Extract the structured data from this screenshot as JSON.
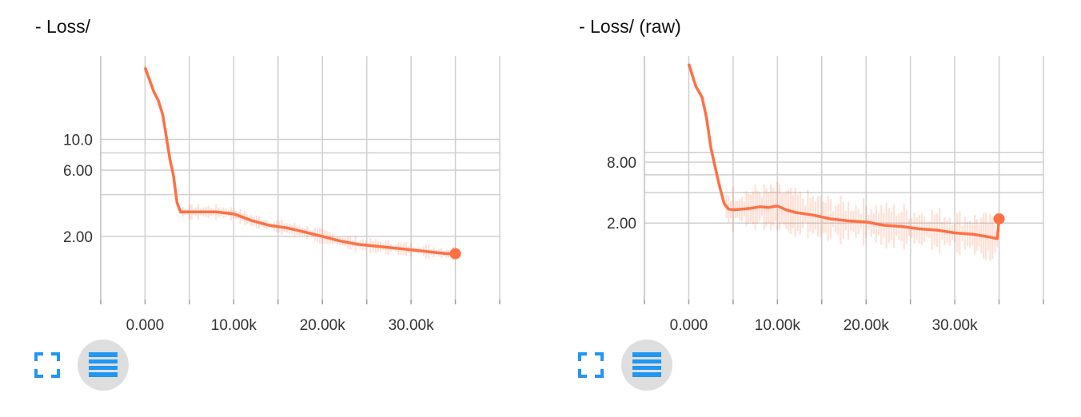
{
  "panels": [
    {
      "id": "left",
      "title": "- Loss/",
      "chart_data": {
        "type": "line",
        "title": "- Loss/",
        "xlabel": "",
        "ylabel": "",
        "x_tick_labels": [
          "0.000",
          "10.00k",
          "20.00k",
          "30.00k"
        ],
        "y_tick_labels": [
          "10.0",
          "6.00",
          "2.00"
        ],
        "xlim": [
          -5000,
          40000
        ],
        "ylim": [
          0.7,
          40
        ],
        "y_scale": "log",
        "grid": true,
        "series": [
          {
            "color": "#ff7043",
            "end_marker": true,
            "x": [
              0,
              1000,
              1500,
              2000,
              2500,
              2800,
              3200,
              3600,
              4000,
              4500,
              5000,
              6000,
              8000,
              10000,
              11000,
              12000,
              14000,
              16000,
              18000,
              20000,
              22000,
              24000,
              26000,
              28000,
              30000,
              32000,
              34000,
              35000
            ],
            "y": [
              33,
              22,
              19,
              15,
              9.5,
              7.2,
              5.5,
              3.5,
              3.0,
              3.0,
              3.0,
              3.0,
              3.0,
              2.9,
              2.75,
              2.6,
              2.4,
              2.3,
              2.15,
              2.0,
              1.85,
              1.75,
              1.7,
              1.65,
              1.6,
              1.55,
              1.5,
              1.5
            ]
          }
        ]
      }
    },
    {
      "id": "right",
      "title": "- Loss/ (raw)",
      "chart_data": {
        "type": "line",
        "title": "- Loss/ (raw)",
        "xlabel": "",
        "ylabel": "",
        "x_tick_labels": [
          "0.000",
          "10.00k",
          "20.00k",
          "30.00k"
        ],
        "y_tick_labels": [
          "8.00",
          "2.00"
        ],
        "xlim": [
          -5000,
          40000
        ],
        "ylim": [
          0.35,
          90
        ],
        "y_scale": "log",
        "grid": true,
        "series": [
          {
            "color": "#ff7043",
            "end_marker": true,
            "x": [
              0,
              800,
              1500,
              2000,
              2500,
              3000,
              3500,
              4000,
              4500,
              5000,
              6000,
              7000,
              8000,
              9000,
              10000,
              11000,
              12000,
              14000,
              16000,
              18000,
              20000,
              22000,
              24000,
              26000,
              28000,
              30000,
              32000,
              33000,
              34000,
              34800,
              35000
            ],
            "y": [
              75,
              45,
              35,
              22,
              11,
              7,
              4.5,
              3.1,
              2.75,
              2.7,
              2.75,
              2.8,
              2.9,
              2.85,
              2.95,
              2.7,
              2.55,
              2.4,
              2.2,
              2.1,
              2.05,
              1.9,
              1.85,
              1.75,
              1.7,
              1.6,
              1.55,
              1.5,
              1.45,
              1.4,
              2.2
            ]
          }
        ]
      }
    }
  ]
}
